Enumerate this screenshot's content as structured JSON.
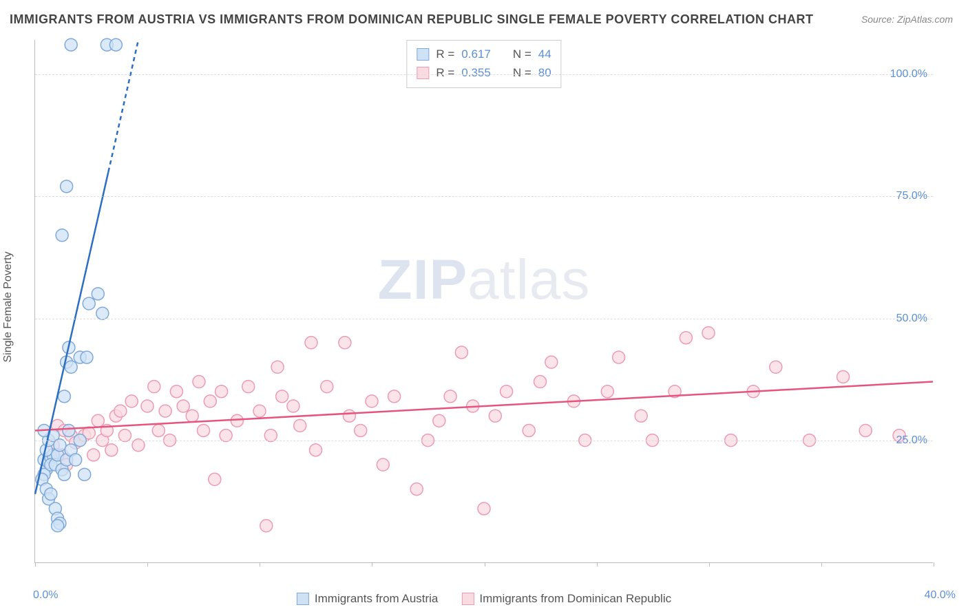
{
  "title": "IMMIGRANTS FROM AUSTRIA VS IMMIGRANTS FROM DOMINICAN REPUBLIC SINGLE FEMALE POVERTY CORRELATION CHART",
  "source": "Source: ZipAtlas.com",
  "y_axis_label": "Single Female Poverty",
  "watermark": {
    "bold": "ZIP",
    "rest": "atlas"
  },
  "chart": {
    "type": "scatter",
    "background_color": "#ffffff",
    "grid_color": "#dddddd",
    "axis_color": "#bbbbbb",
    "tick_label_color": "#5b8fd6",
    "xlim": [
      0,
      40
    ],
    "ylim": [
      0,
      107
    ],
    "x_ticks": [
      0,
      5,
      10,
      15,
      20,
      25,
      30,
      35,
      40
    ],
    "x_tick_labels": {
      "0": "0.0%",
      "40": "40.0%"
    },
    "y_ticks": [
      25,
      50,
      75,
      100
    ],
    "y_tick_labels": {
      "25": "25.0%",
      "50": "50.0%",
      "75": "75.0%",
      "100": "100.0%"
    },
    "marker_radius": 9,
    "marker_stroke_width": 1.5,
    "trend_line_width": 2.5
  },
  "series": [
    {
      "id": "austria",
      "label": "Immigrants from Austria",
      "fill": "#cfe1f5",
      "stroke": "#7fa9d8",
      "line_color": "#2c6fc0",
      "R": "0.617",
      "N": "44",
      "trend": {
        "x1": 0,
        "y1": 14,
        "x2": 4.6,
        "y2": 107,
        "dash_from_y": 80
      },
      "points": [
        [
          0.4,
          21
        ],
        [
          0.5,
          19
        ],
        [
          0.6,
          20.5
        ],
        [
          0.7,
          21.5
        ],
        [
          0.8,
          22
        ],
        [
          0.4,
          18
        ],
        [
          0.5,
          23
        ],
        [
          0.6,
          25
        ],
        [
          0.7,
          20
        ],
        [
          0.8,
          26
        ],
        [
          0.3,
          17
        ],
        [
          0.9,
          20
        ],
        [
          1.0,
          22
        ],
        [
          1.1,
          24
        ],
        [
          1.2,
          19
        ],
        [
          0.5,
          15
        ],
        [
          0.6,
          13
        ],
        [
          0.7,
          14
        ],
        [
          1.3,
          18
        ],
        [
          1.4,
          21
        ],
        [
          1.5,
          27
        ],
        [
          1.6,
          23
        ],
        [
          1.8,
          21
        ],
        [
          2.0,
          25
        ],
        [
          2.2,
          18
        ],
        [
          0.9,
          11
        ],
        [
          1.0,
          9
        ],
        [
          1.1,
          8
        ],
        [
          1.0,
          7.5
        ],
        [
          1.3,
          34
        ],
        [
          1.4,
          41
        ],
        [
          1.5,
          44
        ],
        [
          1.6,
          40
        ],
        [
          2.0,
          42
        ],
        [
          2.3,
          42
        ],
        [
          2.4,
          53
        ],
        [
          2.8,
          55
        ],
        [
          3.0,
          51
        ],
        [
          1.2,
          67
        ],
        [
          1.4,
          77
        ],
        [
          1.6,
          106
        ],
        [
          3.2,
          106
        ],
        [
          3.6,
          106
        ],
        [
          0.4,
          27
        ]
      ]
    },
    {
      "id": "dominican",
      "label": "Immigrants from Dominican Republic",
      "fill": "#fadbe2",
      "stroke": "#ec9bb1",
      "line_color": "#e5547e",
      "R": "0.355",
      "N": "80",
      "trend": {
        "x1": 0,
        "y1": 27,
        "x2": 40,
        "y2": 37
      },
      "points": [
        [
          0.8,
          24
        ],
        [
          1.0,
          28
        ],
        [
          1.2,
          22
        ],
        [
          1.3,
          27
        ],
        [
          1.4,
          20
        ],
        [
          1.6,
          26
        ],
        [
          1.8,
          24.5
        ],
        [
          2.0,
          25
        ],
        [
          2.2,
          26
        ],
        [
          2.4,
          26.5
        ],
        [
          2.6,
          22
        ],
        [
          2.8,
          29
        ],
        [
          3.0,
          25
        ],
        [
          3.2,
          27
        ],
        [
          3.4,
          23
        ],
        [
          3.6,
          30
        ],
        [
          3.8,
          31
        ],
        [
          4.0,
          26
        ],
        [
          4.3,
          33
        ],
        [
          4.6,
          24
        ],
        [
          5.0,
          32
        ],
        [
          5.3,
          36
        ],
        [
          5.5,
          27
        ],
        [
          5.8,
          31
        ],
        [
          6.0,
          25
        ],
        [
          6.3,
          35
        ],
        [
          6.6,
          32
        ],
        [
          7.0,
          30
        ],
        [
          7.3,
          37
        ],
        [
          7.5,
          27
        ],
        [
          7.8,
          33
        ],
        [
          8.0,
          17
        ],
        [
          8.3,
          35
        ],
        [
          8.5,
          26
        ],
        [
          9.0,
          29
        ],
        [
          9.5,
          36
        ],
        [
          10.0,
          31
        ],
        [
          10.3,
          7.5
        ],
        [
          10.5,
          26
        ],
        [
          10.8,
          40
        ],
        [
          11.0,
          34
        ],
        [
          11.5,
          32
        ],
        [
          11.8,
          28
        ],
        [
          12.3,
          45
        ],
        [
          12.5,
          23
        ],
        [
          13.0,
          36
        ],
        [
          13.8,
          45
        ],
        [
          14.0,
          30
        ],
        [
          14.5,
          27
        ],
        [
          15.0,
          33
        ],
        [
          15.5,
          20
        ],
        [
          16.0,
          34
        ],
        [
          17.0,
          15
        ],
        [
          17.5,
          25
        ],
        [
          18.0,
          29
        ],
        [
          18.5,
          34
        ],
        [
          19.0,
          43
        ],
        [
          19.5,
          32
        ],
        [
          20.0,
          11
        ],
        [
          20.5,
          30
        ],
        [
          21.0,
          35
        ],
        [
          22.0,
          27
        ],
        [
          22.5,
          37
        ],
        [
          23.0,
          41
        ],
        [
          24.0,
          33
        ],
        [
          24.5,
          25
        ],
        [
          25.5,
          35
        ],
        [
          26.0,
          42
        ],
        [
          27.0,
          30
        ],
        [
          27.5,
          25
        ],
        [
          28.5,
          35
        ],
        [
          29.0,
          46
        ],
        [
          30.0,
          47
        ],
        [
          31.0,
          25
        ],
        [
          32.0,
          35
        ],
        [
          33.0,
          40
        ],
        [
          34.5,
          25
        ],
        [
          36.0,
          38
        ],
        [
          37.0,
          27
        ],
        [
          38.5,
          26
        ]
      ]
    }
  ],
  "stat_box": {
    "r_label": "R  =",
    "n_label": "N  ="
  },
  "legend_labels": {
    "austria": "Immigrants from Austria",
    "dominican": "Immigrants from Dominican Republic"
  }
}
